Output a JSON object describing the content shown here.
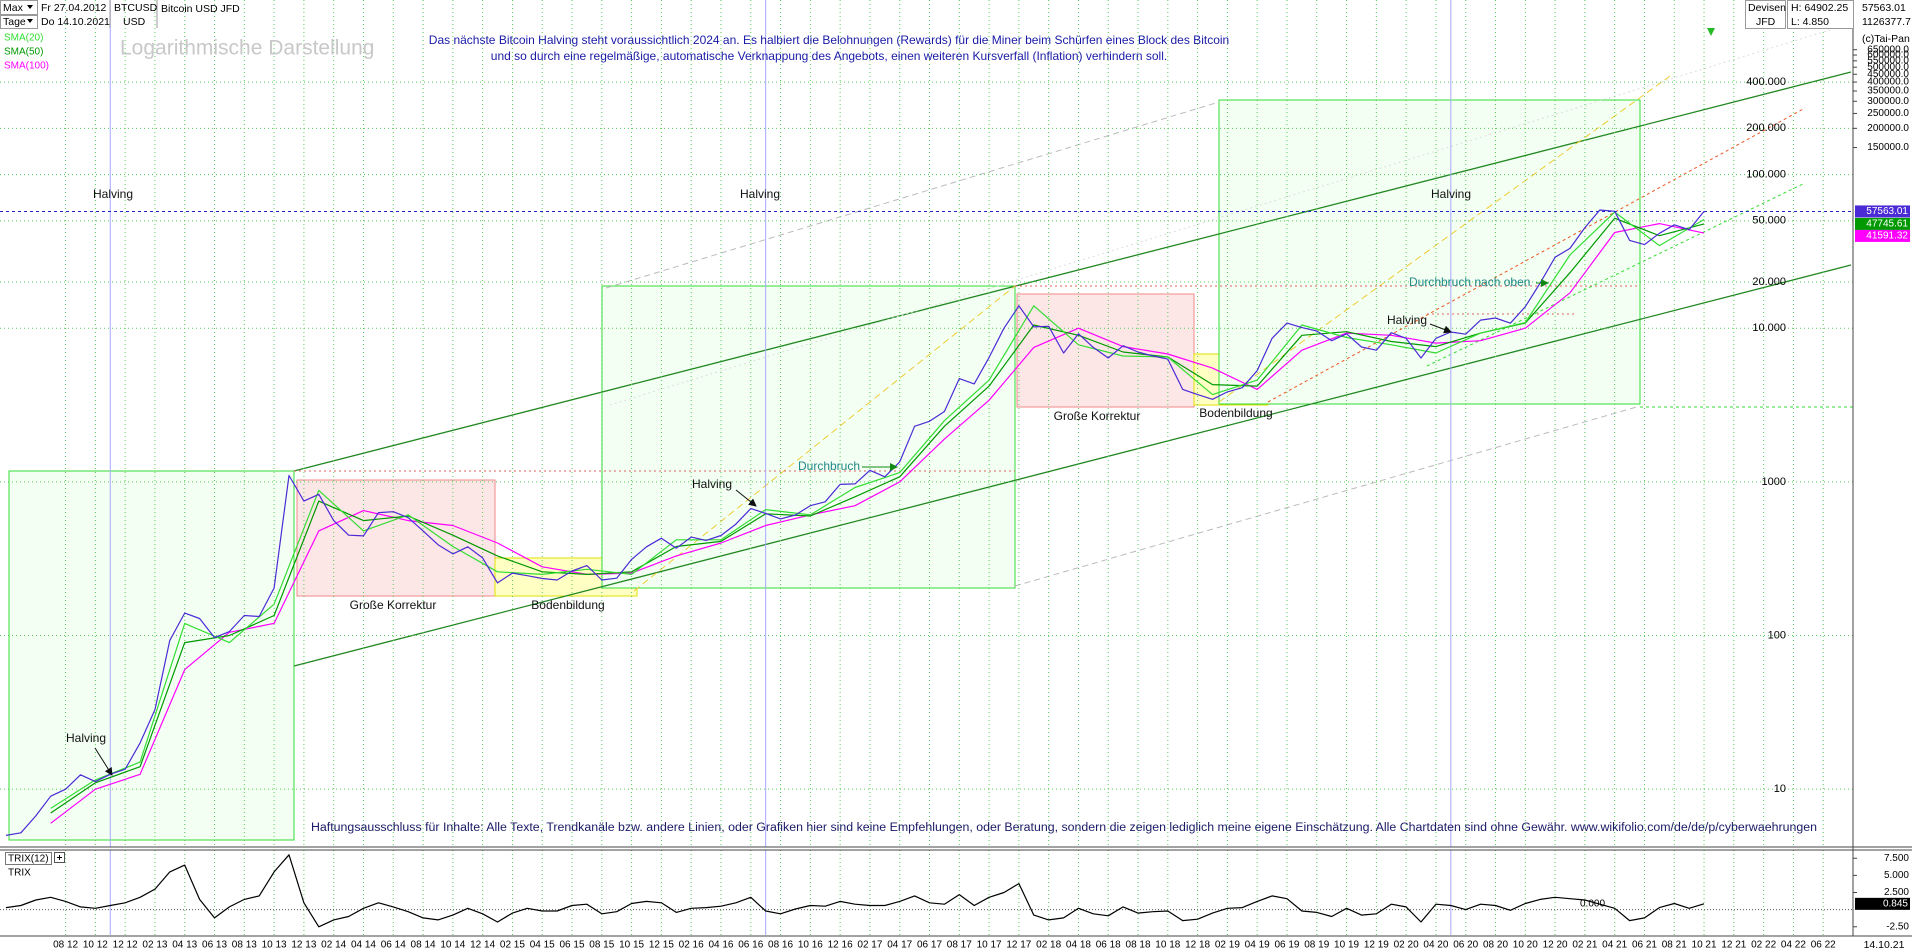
{
  "header": {
    "period": "Max",
    "from": "Fr 27.04.2012",
    "interval": "Tage",
    "to": "Do 14.10.2021",
    "symbol": "BTCUSD",
    "currency": "USD",
    "name": "Bitcoin USD JFD",
    "market": "Devisen",
    "broker": "JFD",
    "high": "H: 64902.25",
    "low": "L: 4.850",
    "last": "57563.01",
    "scale_top": "1126377.7",
    "copyright": "(c)Tai-Pan",
    "last_date": "14.10.21"
  },
  "chart_data": [
    {
      "type": "line",
      "log_y": true,
      "grid": true,
      "xlim": [
        "04 12",
        "08 22"
      ],
      "ylim": [
        4.6,
        1126377.7
      ],
      "yticks": [
        {
          "value": 400000,
          "label": "400.000"
        },
        {
          "value": 200000,
          "label": "200.000"
        },
        {
          "value": 100000,
          "label": "100.000"
        },
        {
          "value": 50000,
          "label": "50.000"
        },
        {
          "value": 20000,
          "label": "20.000"
        },
        {
          "value": 10000,
          "label": "10.000"
        },
        1000,
        100,
        10
      ],
      "yticks_outer": [
        {
          "value": 650000,
          "label": "650000.0"
        },
        {
          "value": 600000,
          "label": "600000.0"
        },
        {
          "value": 550000,
          "label": "550000.0"
        },
        {
          "value": 500000,
          "label": "500000.0"
        },
        {
          "value": 450000,
          "label": "450000.0"
        },
        {
          "value": 400000,
          "label": "400000.0"
        },
        {
          "value": 350000,
          "label": "350000.0"
        },
        {
          "value": 300000,
          "label": "300000.0"
        },
        {
          "value": 250000,
          "label": "250000.0"
        },
        {
          "value": 200000,
          "label": "200000.0"
        },
        {
          "value": 150000,
          "label": "150000.0"
        }
      ],
      "xticks": [
        "08 12",
        "10 12",
        "12 12",
        "02 13",
        "04 13",
        "06 13",
        "08 13",
        "10 13",
        "12 13",
        "02 14",
        "04 14",
        "06 14",
        "08 14",
        "10 14",
        "12 14",
        "02 15",
        "04 15",
        "06 15",
        "08 15",
        "10 15",
        "12 15",
        "02 16",
        "04 16",
        "06 16",
        "08 16",
        "10 16",
        "12 16",
        "02 17",
        "04 17",
        "06 17",
        "08 17",
        "10 17",
        "12 17",
        "02 18",
        "04 18",
        "06 18",
        "08 18",
        "10 18",
        "12 18",
        "02 19",
        "04 19",
        "06 19",
        "08 19",
        "10 19",
        "12 19",
        "02 20",
        "04 20",
        "06 20",
        "08 20",
        "10 20",
        "12 20",
        "02 21",
        "04 21",
        "06 21",
        "08 21",
        "10 21",
        "12 21",
        "02 22",
        "04 22",
        "06 22"
      ],
      "halvings": [
        "11 12",
        "07 16",
        "05 20"
      ],
      "x": [
        "04 12",
        "05 12",
        "06 12",
        "07 12",
        "08 12",
        "09 12",
        "10 12",
        "11 12",
        "12 12",
        "01 13",
        "02 13",
        "03 13",
        "04 13",
        "05 13",
        "06 13",
        "07 13",
        "08 13",
        "09 13",
        "10 13",
        "11 13",
        "12 13",
        "01 14",
        "02 14",
        "03 14",
        "04 14",
        "05 14",
        "06 14",
        "07 14",
        "08 14",
        "09 14",
        "10 14",
        "11 14",
        "12 14",
        "01 15",
        "02 15",
        "03 15",
        "04 15",
        "05 15",
        "06 15",
        "07 15",
        "08 15",
        "09 15",
        "10 15",
        "11 15",
        "12 15",
        "01 16",
        "02 16",
        "03 16",
        "04 16",
        "05 16",
        "06 16",
        "07 16",
        "08 16",
        "09 16",
        "10 16",
        "11 16",
        "12 16",
        "01 17",
        "02 17",
        "03 17",
        "04 17",
        "05 17",
        "06 17",
        "07 17",
        "08 17",
        "09 17",
        "10 17",
        "11 17",
        "12 17",
        "01 18",
        "02 18",
        "03 18",
        "04 18",
        "05 18",
        "06 18",
        "07 18",
        "08 18",
        "09 18",
        "10 18",
        "11 18",
        "12 18",
        "01 19",
        "02 19",
        "03 19",
        "04 19",
        "05 19",
        "06 19",
        "07 19",
        "08 19",
        "09 19",
        "10 19",
        "11 19",
        "12 19",
        "01 20",
        "02 20",
        "03 20",
        "04 20",
        "05 20",
        "06 20",
        "07 20",
        "08 20",
        "09 20",
        "10 20",
        "11 20",
        "12 20",
        "01 21",
        "02 21",
        "03 21",
        "04 21",
        "05 21",
        "06 21",
        "07 21",
        "08 21",
        "09 21",
        "10 21"
      ],
      "series": [
        {
          "color": "#4b2bd6",
          "last_value_box": true,
          "values": [
            5,
            5.2,
            6.7,
            9,
            10,
            12.4,
            11.2,
            12.5,
            13.5,
            20,
            33,
            93,
            140,
            129,
            97,
            106,
            135,
            133,
            204,
            1100,
            750,
            830,
            560,
            450,
            445,
            630,
            640,
            585,
            480,
            390,
            340,
            378,
            320,
            220,
            255,
            245,
            235,
            230,
            263,
            285,
            230,
            236,
            313,
            378,
            430,
            370,
            437,
            416,
            448,
            531,
            670,
            624,
            574,
            609,
            700,
            742,
            963,
            970,
            1190,
            1080,
            1350,
            2300,
            2480,
            2870,
            4700,
            4340,
            6460,
            10000,
            14000,
            10200,
            10300,
            6900,
            9200,
            7500,
            6400,
            7700,
            7000,
            6600,
            6300,
            4000,
            3700,
            3450,
            3850,
            4100,
            5300,
            8600,
            10800,
            10100,
            9600,
            8300,
            9200,
            7550,
            7200,
            9350,
            8600,
            6400,
            8600,
            9450,
            9150,
            11300,
            11650,
            10780,
            13800,
            19700,
            29000,
            33100,
            45200,
            58800,
            57700,
            37300,
            35000,
            41500,
            47100,
            43800,
            57563.01
          ]
        },
        {
          "name": "SMA(20)",
          "color": "#33dd33",
          "last_value_box": false,
          "x": [
            "07 12",
            "10 12",
            "01 13",
            "04 13",
            "07 13",
            "10 13",
            "01 14",
            "04 14",
            "07 14",
            "10 14",
            "01 15",
            "04 15",
            "07 15",
            "10 15",
            "01 16",
            "04 16",
            "07 16",
            "10 16",
            "01 17",
            "04 17",
            "07 17",
            "10 17",
            "01 18",
            "04 18",
            "07 18",
            "10 18",
            "01 19",
            "04 19",
            "07 19",
            "10 19",
            "01 20",
            "04 20",
            "07 20",
            "10 20",
            "01 21",
            "04 21",
            "07 21",
            "10 21"
          ],
          "values": [
            7.5,
            11.5,
            15,
            120,
            90,
            160,
            880,
            480,
            610,
            380,
            260,
            250,
            270,
            250,
            420,
            420,
            660,
            610,
            920,
            1150,
            2500,
            4600,
            14000,
            7800,
            6600,
            6500,
            3700,
            4600,
            10500,
            8700,
            7800,
            6900,
            9300,
            10900,
            30000,
            57000,
            34500,
            51000
          ]
        },
        {
          "name": "SMA(50)",
          "color": "#009900",
          "last_value_box": true,
          "x": [
            "07 12",
            "10 12",
            "01 13",
            "04 13",
            "07 13",
            "10 13",
            "01 14",
            "04 14",
            "07 14",
            "10 14",
            "01 15",
            "04 15",
            "07 15",
            "10 15",
            "01 16",
            "04 16",
            "07 16",
            "10 16",
            "01 17",
            "04 17",
            "07 17",
            "10 17",
            "01 18",
            "04 18",
            "07 18",
            "10 18",
            "01 19",
            "04 19",
            "07 19",
            "10 19",
            "01 20",
            "04 20",
            "07 20",
            "10 20",
            "01 21",
            "04 21",
            "07 21",
            "10 21"
          ],
          "values": [
            7,
            11,
            14,
            90,
            100,
            135,
            750,
            560,
            600,
            450,
            330,
            260,
            250,
            260,
            380,
            410,
            620,
            600,
            800,
            1080,
            2300,
            4200,
            10500,
            9000,
            7000,
            6500,
            4300,
            4200,
            9000,
            9500,
            8200,
            7600,
            9300,
            10800,
            23000,
            52000,
            40000,
            47745.61
          ]
        },
        {
          "name": "SMA(100)",
          "color": "#ff00ff",
          "last_value_box": true,
          "x": [
            "07 12",
            "10 12",
            "01 13",
            "04 13",
            "07 13",
            "10 13",
            "01 14",
            "04 14",
            "07 14",
            "10 14",
            "01 15",
            "04 15",
            "07 15",
            "10 15",
            "01 16",
            "04 16",
            "07 16",
            "10 16",
            "01 17",
            "04 17",
            "07 17",
            "10 17",
            "01 18",
            "04 18",
            "07 18",
            "10 18",
            "01 19",
            "04 19",
            "07 19",
            "10 19",
            "01 20",
            "04 20",
            "07 20",
            "10 20",
            "01 21",
            "04 21",
            "07 21",
            "10 21"
          ],
          "values": [
            6,
            10,
            12.5,
            60,
            105,
            120,
            480,
            650,
            560,
            520,
            400,
            280,
            250,
            255,
            330,
            400,
            520,
            610,
            700,
            1000,
            1900,
            3400,
            7500,
            10000,
            7600,
            6800,
            5500,
            4000,
            7200,
            9300,
            9000,
            8000,
            8300,
            10000,
            17000,
            42000,
            48000,
            41591.32
          ]
        }
      ],
      "annotations": [
        "Logarithmische Darstellung",
        "Das nächste Bitcoin Halving steht voraussichtlich 2024 an. Es halbiert die Belohnungen (Rewards) für die Miner beim Schürfen eines Block des Bitcoin",
        "und so durch eine regelmäßige, automatische Verknappung des Angebots, einen weiteren Kursverfall (Inflation) verhindern soll.",
        "Halving",
        "Halving",
        "Halving",
        "Halving",
        "Halving",
        "Halving",
        "Durchbruch",
        "Durchbruch nach oben",
        "Große Korrektur",
        "Bodenbildung",
        "Große Korrektur",
        "Bodenbildung",
        "Haftungsausschluss für Inhalte: Alle Texte, Trendkanäle bzw. andere Linien, oder Grafiken hier sind keine Empfehlungen, oder Beratung, sondern die zeigen lediglich meine eigene Einschätzung. Alle Chartdaten sind ohne Gewähr.  www.wikifolio.com/de/de/p/cyberwaehrungen"
      ]
    },
    {
      "type": "line",
      "title": "TRIX(12)",
      "ylim": [
        -3.7,
        8.7
      ],
      "yticks": [
        {
          "value": 7.5,
          "label": "7.500"
        },
        {
          "value": 5,
          "label": "5.000"
        },
        {
          "value": 2.5,
          "label": "2.500"
        },
        {
          "value": -2.5,
          "label": "-2.50"
        }
      ],
      "reference_lines": [
        {
          "value": 0,
          "label": "0.000"
        }
      ],
      "series": [
        {
          "name": "TRIX",
          "color": "#000000",
          "last_value_box": true,
          "values": [
            0.3,
            0.6,
            1.4,
            1.8,
            1.2,
            0.4,
            0.2,
            0.6,
            1.0,
            1.8,
            3.0,
            5.5,
            6.5,
            1.5,
            -1.2,
            0.4,
            1.5,
            2.0,
            5.5,
            8.0,
            1.0,
            -2.5,
            -1.5,
            -1.0,
            0.2,
            1.0,
            0.4,
            -0.3,
            -1.2,
            -1.5,
            -0.8,
            0.2,
            -0.6,
            -1.8,
            -0.5,
            0.2,
            -0.2,
            -0.2,
            0.6,
            0.8,
            -0.6,
            -0.3,
            0.9,
            1.2,
            1.0,
            -0.4,
            0.2,
            0.3,
            0.5,
            1.0,
            1.8,
            -0.2,
            -0.6,
            0.1,
            0.6,
            0.5,
            1.2,
            0.8,
            0.6,
            0.6,
            1.2,
            2.0,
            1.0,
            0.8,
            2.2,
            0.6,
            1.8,
            2.5,
            3.8,
            -0.8,
            -1.5,
            -1.2,
            0.2,
            -0.6,
            -0.9,
            0.4,
            -0.5,
            -0.3,
            -0.2,
            -1.6,
            -1.4,
            -0.5,
            0.2,
            0.3,
            1.2,
            2.0,
            1.6,
            -0.2,
            -0.4,
            -1.0,
            0.2,
            -0.8,
            -0.6,
            0.8,
            0.4,
            -1.8,
            0.8,
            0.6,
            0.0,
            0.8,
            0.6,
            -0.1,
            0.9,
            1.5,
            1.8,
            1.6,
            1.4,
            0.8,
            0.2,
            -1.6,
            -1.2,
            0.3,
            0.9,
            0.2,
            0.845
          ]
        }
      ]
    }
  ]
}
